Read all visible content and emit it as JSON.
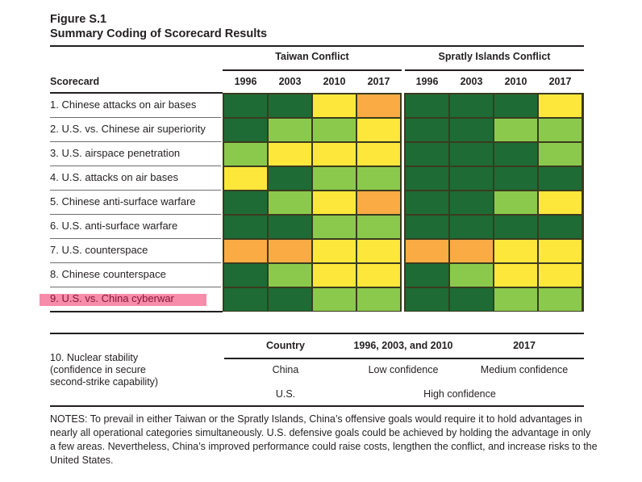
{
  "figure": {
    "label": "Figure S.1",
    "title": "Summary Coding of Scorecard Results"
  },
  "chart_data": {
    "type": "heatmap",
    "title": "Summary Coding of Scorecard Results",
    "row_header": "Scorecard",
    "groups": [
      {
        "name": "Taiwan Conflict",
        "years": [
          "1996",
          "2003",
          "2010",
          "2017"
        ]
      },
      {
        "name": "Spratly Islands Conflict",
        "years": [
          "1996",
          "2003",
          "2010",
          "2017"
        ]
      }
    ],
    "color_scale": {
      "1": "#1e6b35",
      "2": "#8bc94d",
      "3": "#fde73a",
      "4": "#fbab43"
    },
    "color_scale_meaning": {
      "1": "dark green",
      "2": "light green",
      "3": "yellow",
      "4": "orange"
    },
    "rows": [
      {
        "label": "1. Chinese attacks on air bases",
        "taiwan": [
          1,
          1,
          3,
          4
        ],
        "spratly": [
          1,
          1,
          1,
          3
        ]
      },
      {
        "label": "2. U.S. vs. Chinese air superiority",
        "taiwan": [
          1,
          2,
          2,
          3
        ],
        "spratly": [
          1,
          1,
          2,
          2
        ]
      },
      {
        "label": "3. U.S. airspace penetration",
        "taiwan": [
          2,
          3,
          3,
          3
        ],
        "spratly": [
          1,
          1,
          1,
          2
        ]
      },
      {
        "label": "4. U.S. attacks on air bases",
        "taiwan": [
          3,
          1,
          2,
          2
        ],
        "spratly": [
          1,
          1,
          1,
          1
        ]
      },
      {
        "label": "5. Chinese anti-surface warfare",
        "taiwan": [
          1,
          2,
          3,
          4
        ],
        "spratly": [
          1,
          1,
          2,
          3
        ]
      },
      {
        "label": "6. U.S. anti-surface warfare",
        "taiwan": [
          1,
          1,
          2,
          2
        ],
        "spratly": [
          1,
          1,
          1,
          1
        ]
      },
      {
        "label": "7. U.S. counterspace",
        "taiwan": [
          4,
          4,
          3,
          3
        ],
        "spratly": [
          4,
          4,
          3,
          3
        ]
      },
      {
        "label": "8. Chinese counterspace",
        "taiwan": [
          1,
          2,
          3,
          3
        ],
        "spratly": [
          1,
          2,
          3,
          3
        ]
      },
      {
        "label": "9. U.S. vs. China cyberwar",
        "taiwan": [
          1,
          1,
          2,
          2
        ],
        "spratly": [
          1,
          1,
          2,
          2
        ],
        "highlighted": true
      }
    ],
    "highlight_color": "#f57fa0"
  },
  "nuclear": {
    "label_lines": [
      "10. Nuclear stability",
      "(confidence in secure",
      "second-strike capability)"
    ],
    "headers": [
      "Country",
      "1996, 2003, and 2010",
      "2017"
    ],
    "china": {
      "country": "China",
      "early": "Low confidence",
      "late": "Medium confidence"
    },
    "us": {
      "country": "U.S.",
      "all": "High confidence"
    }
  },
  "notes": "NOTES: To prevail in either Taiwan or the Spratly Islands, China’s offensive goals would require it to hold advantages in nearly all operational categories simultaneously. U.S. defensive goals could be achieved by holding the advantage in only a few areas. Nevertheless, China’s improved performance could raise costs, lengthen the conflict, and increase risks to the United States."
}
